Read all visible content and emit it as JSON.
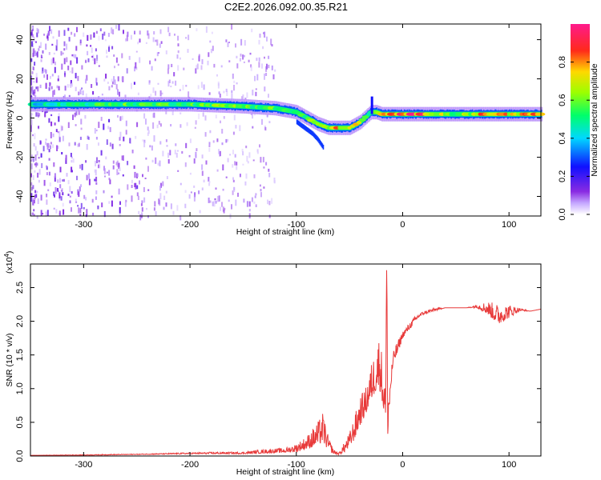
{
  "title": "C2E2.2026.092.00.35.R21",
  "colors": {
    "snr_line": "#e83a3a",
    "ridge_core": "#ff2a2a",
    "ridge_mid": "#22e07a",
    "ridge_edge": "#1a3cff",
    "noise": "#7a2cff"
  },
  "chart_data": [
    {
      "type": "heatmap",
      "name": "spectrogram",
      "title": "C2E2.2026.092.00.35.R21",
      "xlabel": "Height of straight line (km)",
      "ylabel": "Frequency (Hz)",
      "xlim": [
        -350,
        130
      ],
      "ylim": [
        -50,
        48
      ],
      "x_ticks": [
        -300,
        -200,
        -100,
        0,
        100
      ],
      "y_ticks": [
        -40,
        -20,
        0,
        20,
        40
      ],
      "ridge": {
        "x": [
          -350,
          -300,
          -250,
          -200,
          -150,
          -120,
          -100,
          -90,
          -80,
          -70,
          -60,
          -50,
          -40,
          -30,
          -25,
          -20,
          -10,
          0,
          20,
          50,
          80,
          100,
          130
        ],
        "freq": [
          7,
          7,
          7,
          7,
          6,
          5,
          3,
          0,
          -3,
          -5,
          -5,
          -5,
          -2,
          3,
          3,
          2,
          2,
          2,
          2,
          2,
          2,
          2,
          2
        ],
        "amplitude": [
          0.45,
          0.55,
          0.6,
          0.6,
          0.65,
          0.6,
          0.55,
          0.6,
          0.65,
          0.7,
          0.8,
          0.75,
          0.7,
          0.5,
          0.6,
          0.75,
          0.85,
          0.95,
          0.9,
          0.6,
          0.85,
          0.8,
          0.85
        ]
      },
      "branch": {
        "x": [
          -100,
          -90,
          -85,
          -80,
          -75
        ],
        "freq": [
          -2,
          -6,
          -8,
          -11,
          -15
        ]
      },
      "colorbar": {
        "label": "Normalized spectral amplitude",
        "range": [
          0,
          1
        ],
        "ticks": [
          "0.0",
          "0.2",
          "0.4",
          "0.6",
          "0.8"
        ],
        "tick_values": [
          0,
          0.2,
          0.4,
          0.6,
          0.8
        ]
      }
    },
    {
      "type": "line",
      "name": "snr",
      "xlabel": "Height of straight line (km)",
      "ylabel": "SNR (10 * v/v)",
      "y_multiplier_base": "(x10",
      "y_multiplier_exp": "4",
      "y_multiplier_close": ")",
      "xlim": [
        -350,
        130
      ],
      "ylim": [
        0,
        2.85
      ],
      "x_ticks": [
        -300,
        -200,
        -100,
        0,
        100
      ],
      "y_ticks": [
        "0.0",
        "0.5",
        "1.0",
        "1.5",
        "2.0",
        "2.5"
      ],
      "y_tick_values": [
        0,
        0.5,
        1.0,
        1.5,
        2.0,
        2.5
      ],
      "series": [
        {
          "name": "SNR",
          "x": [
            -350,
            -300,
            -250,
            -200,
            -175,
            -150,
            -130,
            -110,
            -100,
            -90,
            -80,
            -75,
            -70,
            -65,
            -60,
            -55,
            -50,
            -45,
            -40,
            -35,
            -30,
            -27,
            -25,
            -22,
            -20,
            -18,
            -16,
            -15,
            -14,
            -12,
            -10,
            -8,
            -5,
            0,
            5,
            10,
            15,
            20,
            30,
            40,
            60,
            70,
            80,
            90,
            100,
            110,
            120,
            130
          ],
          "envelope": [
            0.01,
            0.02,
            0.03,
            0.05,
            0.06,
            0.06,
            0.1,
            0.12,
            0.18,
            0.3,
            0.5,
            0.65,
            0.3,
            0.1,
            0.05,
            0.2,
            0.35,
            0.6,
            0.9,
            1.0,
            1.35,
            1.5,
            1.7,
            1.8,
            1.6,
            1.3,
            1.0,
            2.85,
            1.0,
            1.2,
            1.4,
            1.6,
            1.7,
            1.85,
            1.95,
            2.05,
            2.12,
            2.15,
            2.2,
            2.2,
            2.2,
            2.25,
            2.3,
            2.25,
            2.25,
            2.2,
            2.15,
            2.18
          ],
          "base": [
            0.01,
            0.01,
            0.02,
            0.03,
            0.03,
            0.03,
            0.04,
            0.05,
            0.06,
            0.1,
            0.15,
            0.2,
            0.08,
            0.03,
            0.02,
            0.05,
            0.12,
            0.25,
            0.45,
            0.6,
            0.8,
            0.9,
            0.95,
            1.0,
            0.9,
            0.6,
            0.5,
            0.2,
            0.3,
            0.7,
            1.2,
            1.4,
            1.5,
            1.75,
            1.85,
            1.95,
            2.05,
            2.1,
            2.15,
            2.2,
            2.2,
            2.2,
            2.1,
            1.95,
            2.05,
            2.15,
            2.15,
            2.18
          ]
        }
      ]
    }
  ]
}
